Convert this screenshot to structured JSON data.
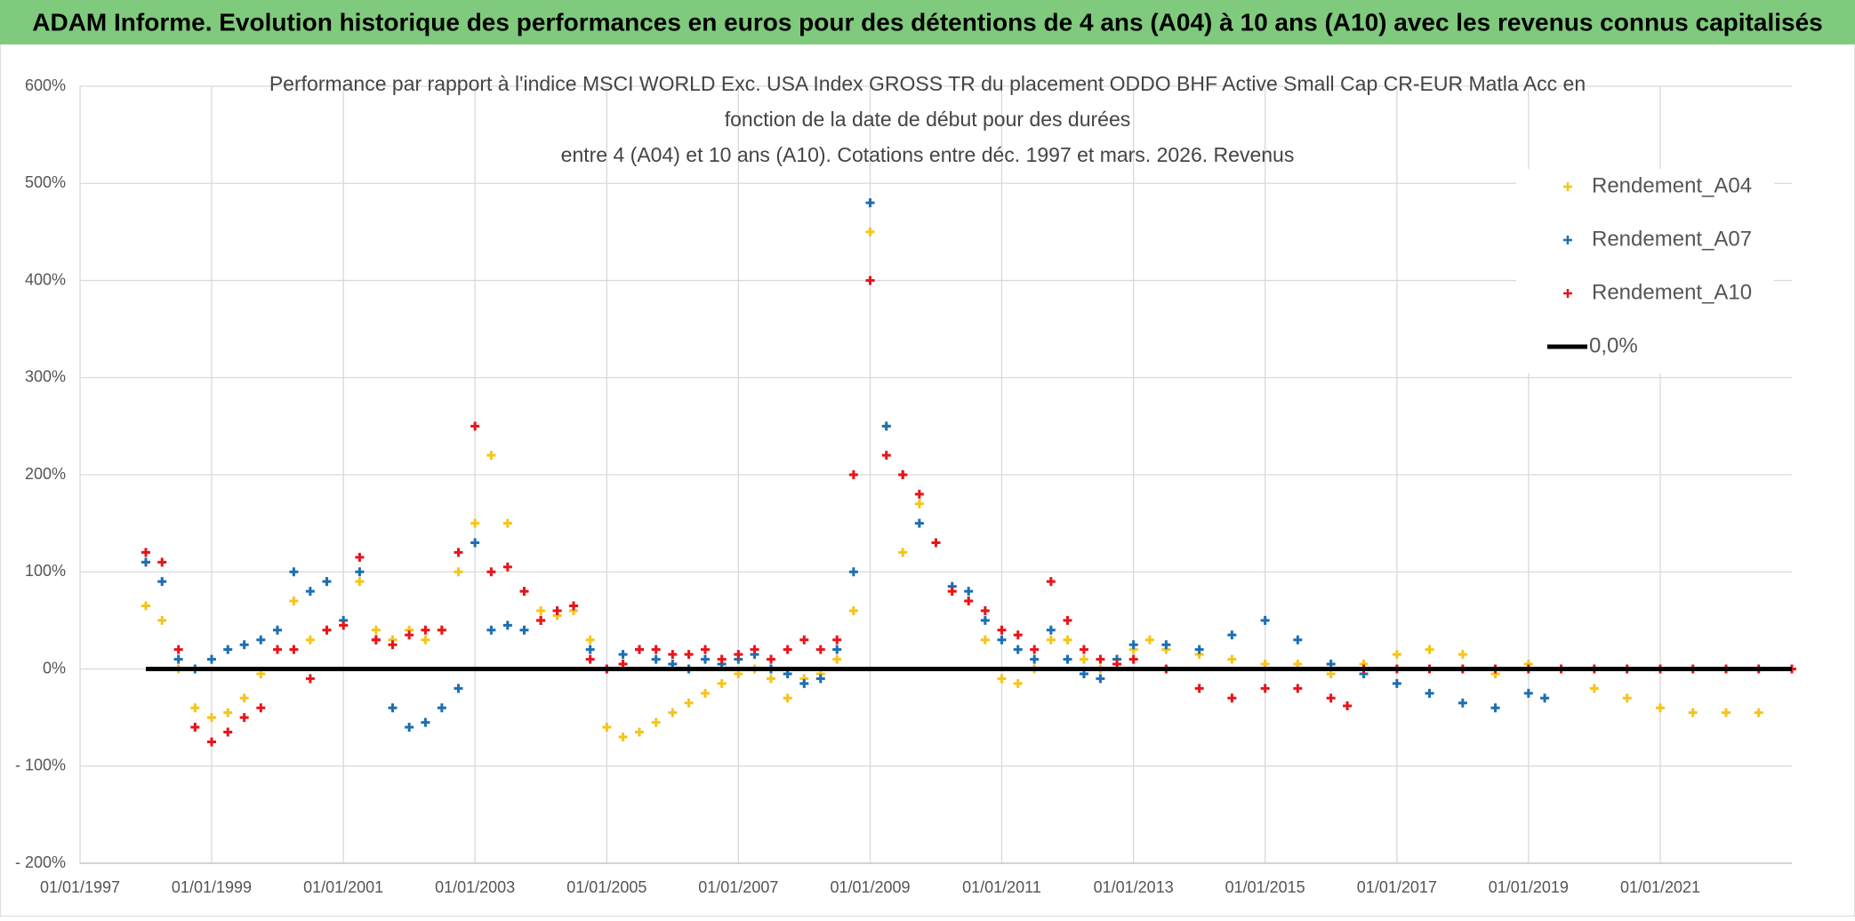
{
  "header": {
    "title": "ADAM Informe. Evolution historique des performances en euros pour des détentions de 4 ans (A04) à 10 ans (A10) avec les revenus connus capitalisés"
  },
  "chart_data": {
    "type": "scatter",
    "title": [
      "Performance par rapport à l'indice MSCI WORLD Exc. USA Index GROSS TR  du placement ODDO BHF Active Small Cap CR-EUR Matla Acc en",
      "fonction de la date de début pour des durées",
      "entre 4 (A04) et 10 ans (A10). Cotations entre déc. 1997 et mars. 2026. Revenus"
    ],
    "xlim": [
      "1997-01-01",
      "2023-01-01"
    ],
    "xticks": [
      {
        "value": "1997-01-01",
        "label": "01/01/1997"
      },
      {
        "value": "1999-01-01",
        "label": "01/01/1999"
      },
      {
        "value": "2001-01-01",
        "label": "01/01/2001"
      },
      {
        "value": "2003-01-01",
        "label": "01/01/2003"
      },
      {
        "value": "2005-01-01",
        "label": "01/01/2005"
      },
      {
        "value": "2007-01-01",
        "label": "01/01/2007"
      },
      {
        "value": "2009-01-01",
        "label": "01/01/2009"
      },
      {
        "value": "2011-01-01",
        "label": "01/01/2011"
      },
      {
        "value": "2013-01-01",
        "label": "01/01/2013"
      },
      {
        "value": "2015-01-01",
        "label": "01/01/2015"
      },
      {
        "value": "2017-01-01",
        "label": "01/01/2017"
      },
      {
        "value": "2019-01-01",
        "label": "01/01/2019"
      },
      {
        "value": "2021-01-01",
        "label": "01/01/2021"
      }
    ],
    "ylim": [
      -200,
      600
    ],
    "yticks": [
      {
        "value": -200,
        "label": "- 200%"
      },
      {
        "value": -100,
        "label": "- 100%"
      },
      {
        "value": 0,
        "label": "0%"
      },
      {
        "value": 100,
        "label": "100%"
      },
      {
        "value": 200,
        "label": "200%"
      },
      {
        "value": 300,
        "label": "300%"
      },
      {
        "value": 400,
        "label": "400%"
      },
      {
        "value": 500,
        "label": "500%"
      },
      {
        "value": 600,
        "label": "600%"
      }
    ],
    "grid": true,
    "legend": "upper right",
    "series": [
      {
        "name": "Rendement_A04",
        "color": "#f5c518",
        "style": "marker",
        "x": [
          "1998-01-01",
          "1998-04-01",
          "1998-07-01",
          "1998-10-01",
          "1999-01-01",
          "1999-04-01",
          "1999-07-01",
          "1999-10-01",
          "2000-01-01",
          "2000-04-01",
          "2000-07-01",
          "2000-10-01",
          "2001-01-01",
          "2001-04-01",
          "2001-07-01",
          "2001-10-01",
          "2002-01-01",
          "2002-04-01",
          "2002-07-01",
          "2002-10-01",
          "2003-01-01",
          "2003-04-01",
          "2003-07-01",
          "2003-10-01",
          "2004-01-01",
          "2004-04-01",
          "2004-07-01",
          "2004-10-01",
          "2005-01-01",
          "2005-04-01",
          "2005-07-01",
          "2005-10-01",
          "2006-01-01",
          "2006-04-01",
          "2006-07-01",
          "2006-10-01",
          "2007-01-01",
          "2007-04-01",
          "2007-07-01",
          "2007-10-01",
          "2008-01-01",
          "2008-04-01",
          "2008-07-01",
          "2008-10-01",
          "2009-01-01",
          "2009-04-01",
          "2009-07-01",
          "2009-10-01",
          "2010-01-01",
          "2010-04-01",
          "2010-07-01",
          "2010-10-01",
          "2011-01-01",
          "2011-04-01",
          "2011-07-01",
          "2011-10-01",
          "2012-01-01",
          "2012-04-01",
          "2012-07-01",
          "2012-10-01",
          "2013-01-01",
          "2013-04-01",
          "2013-07-01",
          "2014-01-01",
          "2014-07-01",
          "2015-01-01",
          "2015-07-01",
          "2016-01-01",
          "2016-07-01",
          "2017-01-01",
          "2017-07-01",
          "2018-01-01",
          "2018-07-01",
          "2019-01-01",
          "2019-07-01",
          "2020-01-01",
          "2020-07-01",
          "2021-01-01",
          "2021-07-01",
          "2022-01-01",
          "2022-07-01"
        ],
        "values": [
          65,
          50,
          0,
          -40,
          -50,
          -45,
          -30,
          -5,
          40,
          70,
          30,
          40,
          45,
          90,
          40,
          30,
          40,
          30,
          40,
          100,
          150,
          220,
          150,
          80,
          60,
          55,
          60,
          30,
          -60,
          -70,
          -65,
          -55,
          -45,
          -35,
          -25,
          -15,
          -5,
          0,
          -10,
          -30,
          -10,
          -5,
          10,
          60,
          450,
          250,
          120,
          170,
          130,
          80,
          70,
          30,
          -10,
          -15,
          0,
          30,
          30,
          10,
          0,
          10,
          20,
          30,
          20,
          15,
          10,
          5,
          5,
          -5,
          5,
          15,
          20,
          15,
          -5,
          5,
          0,
          -20,
          -30,
          -40,
          -45,
          -45,
          -45
        ]
      },
      {
        "name": "Rendement_A07",
        "color": "#1b6fb3",
        "style": "marker",
        "x": [
          "1998-01-01",
          "1998-04-01",
          "1998-07-01",
          "1998-10-01",
          "1999-01-01",
          "1999-04-01",
          "1999-07-01",
          "1999-10-01",
          "2000-01-01",
          "2000-04-01",
          "2000-07-01",
          "2000-10-01",
          "2001-01-01",
          "2001-04-01",
          "2001-07-01",
          "2001-10-01",
          "2002-01-01",
          "2002-04-01",
          "2002-07-01",
          "2002-10-01",
          "2003-01-01",
          "2003-04-01",
          "2003-07-01",
          "2003-10-01",
          "2004-01-01",
          "2004-04-01",
          "2004-07-01",
          "2004-10-01",
          "2005-01-01",
          "2005-04-01",
          "2005-07-01",
          "2005-10-01",
          "2006-01-01",
          "2006-04-01",
          "2006-07-01",
          "2006-10-01",
          "2007-01-01",
          "2007-04-01",
          "2007-07-01",
          "2007-10-01",
          "2008-01-01",
          "2008-04-01",
          "2008-07-01",
          "2008-10-01",
          "2009-01-01",
          "2009-04-01",
          "2009-07-01",
          "2009-10-01",
          "2010-01-01",
          "2010-04-01",
          "2010-07-01",
          "2010-10-01",
          "2011-01-01",
          "2011-04-01",
          "2011-07-01",
          "2011-10-01",
          "2012-01-01",
          "2012-04-01",
          "2012-07-01",
          "2012-10-01",
          "2013-01-01",
          "2013-07-01",
          "2014-01-01",
          "2014-07-01",
          "2015-01-01",
          "2015-07-01",
          "2016-01-01",
          "2016-07-01",
          "2017-01-01",
          "2017-07-01",
          "2018-01-01",
          "2018-07-01",
          "2019-01-01",
          "2019-04-01"
        ],
        "values": [
          110,
          90,
          10,
          0,
          10,
          20,
          25,
          30,
          40,
          100,
          80,
          90,
          50,
          100,
          30,
          -40,
          -60,
          -55,
          -40,
          -20,
          130,
          40,
          45,
          40,
          50,
          60,
          65,
          20,
          0,
          15,
          20,
          10,
          5,
          0,
          10,
          5,
          10,
          15,
          0,
          -5,
          -15,
          -10,
          20,
          100,
          480,
          250,
          200,
          150,
          130,
          85,
          80,
          50,
          30,
          20,
          10,
          40,
          10,
          -5,
          -10,
          10,
          25,
          25,
          20,
          35,
          50,
          30,
          5,
          -5,
          -15,
          -25,
          -35,
          -40,
          -25,
          -30
        ]
      },
      {
        "name": "Rendement_A10",
        "color": "#e8141a",
        "style": "marker",
        "x": [
          "1998-01-01",
          "1998-04-01",
          "1998-07-01",
          "1998-10-01",
          "1999-01-01",
          "1999-04-01",
          "1999-07-01",
          "1999-10-01",
          "2000-01-01",
          "2000-04-01",
          "2000-07-01",
          "2000-10-01",
          "2001-01-01",
          "2001-04-01",
          "2001-07-01",
          "2001-10-01",
          "2002-01-01",
          "2002-04-01",
          "2002-07-01",
          "2002-10-01",
          "2003-01-01",
          "2003-04-01",
          "2003-07-01",
          "2003-10-01",
          "2004-01-01",
          "2004-04-01",
          "2004-07-01",
          "2004-10-01",
          "2005-01-01",
          "2005-04-01",
          "2005-07-01",
          "2005-10-01",
          "2006-01-01",
          "2006-04-01",
          "2006-07-01",
          "2006-10-01",
          "2007-01-01",
          "2007-04-01",
          "2007-07-01",
          "2007-10-01",
          "2008-01-01",
          "2008-04-01",
          "2008-07-01",
          "2008-10-01",
          "2009-01-01",
          "2009-04-01",
          "2009-07-01",
          "2009-10-01",
          "2010-01-01",
          "2010-04-01",
          "2010-07-01",
          "2010-10-01",
          "2011-01-01",
          "2011-04-01",
          "2011-07-01",
          "2011-10-01",
          "2012-01-01",
          "2012-04-01",
          "2012-07-01",
          "2012-10-01",
          "2013-01-01",
          "2013-07-01",
          "2014-01-01",
          "2014-07-01",
          "2015-01-01",
          "2015-07-01",
          "2016-01-01",
          "2016-04-01",
          "2016-07-01",
          "2017-01-01",
          "2017-07-01",
          "2018-01-01",
          "2018-07-01",
          "2019-01-01",
          "2019-07-01",
          "2020-01-01",
          "2020-07-01",
          "2021-01-01",
          "2021-07-01",
          "2022-01-01",
          "2022-07-01",
          "2023-01-01"
        ],
        "values": [
          120,
          110,
          20,
          -60,
          -75,
          -65,
          -50,
          -40,
          20,
          20,
          -10,
          40,
          45,
          115,
          30,
          25,
          35,
          40,
          40,
          120,
          250,
          100,
          105,
          80,
          50,
          60,
          65,
          10,
          0,
          5,
          20,
          20,
          15,
          15,
          20,
          10,
          15,
          20,
          10,
          20,
          30,
          20,
          30,
          200,
          400,
          220,
          200,
          180,
          130,
          80,
          70,
          60,
          40,
          35,
          20,
          90,
          50,
          20,
          10,
          5,
          10,
          0,
          -20,
          -30,
          -20,
          -20,
          -30,
          -38,
          0,
          0,
          0,
          0,
          0,
          0,
          0,
          0,
          0,
          0,
          0,
          0,
          0,
          0
        ]
      },
      {
        "name": "0,0%",
        "color": "#000000",
        "style": "line",
        "x": [
          "1998-01-01",
          "2023-01-01"
        ],
        "values": [
          0,
          0
        ]
      }
    ]
  }
}
